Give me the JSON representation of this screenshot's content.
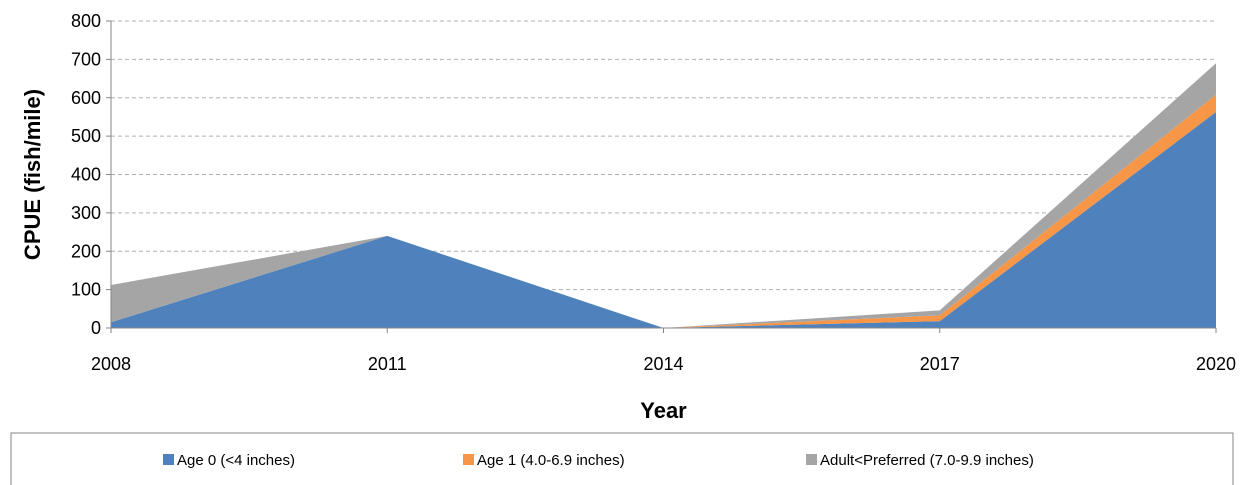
{
  "chart_data": {
    "type": "area",
    "stacked": true,
    "x": [
      "2008",
      "2011",
      "2014",
      "2017",
      "2020"
    ],
    "series": [
      {
        "name": "Age 0 (<4 inches)",
        "color": "#4F81BD",
        "values": [
          15,
          240,
          0,
          18,
          563
        ]
      },
      {
        "name": "Age 1 (4.0-6.9 inches)",
        "color": "#F79646",
        "values": [
          0,
          0,
          0,
          15,
          45
        ]
      },
      {
        "name": "Adult<Preferred (7.0-9.9 inches)",
        "color": "#A5A5A5",
        "values": [
          97,
          0,
          0,
          13,
          82
        ]
      }
    ],
    "xlabel": "Year",
    "ylabel": "CPUE (fish/mile)",
    "ylim": [
      0,
      800
    ],
    "yticks": [
      "0",
      "100",
      "200",
      "300",
      "400",
      "500",
      "600",
      "700",
      "800"
    ],
    "grid": true,
    "grid_style": "dashed",
    "legend_position": "bottom"
  }
}
